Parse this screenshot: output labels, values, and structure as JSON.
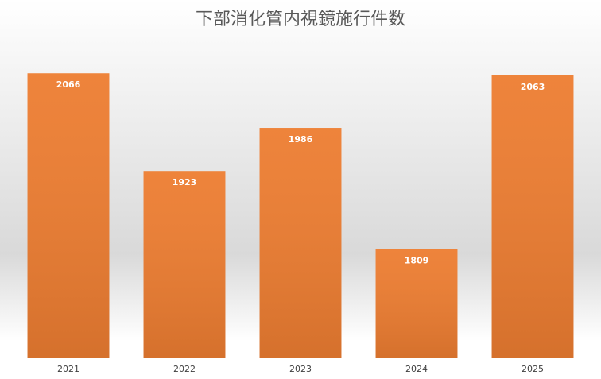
{
  "chart_data": {
    "type": "bar",
    "title": "下部消化管内視鏡施行件数",
    "categories": [
      "2021",
      "2022",
      "2023",
      "2024",
      "2025"
    ],
    "values": [
      2066,
      1923,
      1986,
      1809,
      2063
    ],
    "color": "#ed7d31",
    "ylim": [
      1650,
      2100
    ]
  }
}
